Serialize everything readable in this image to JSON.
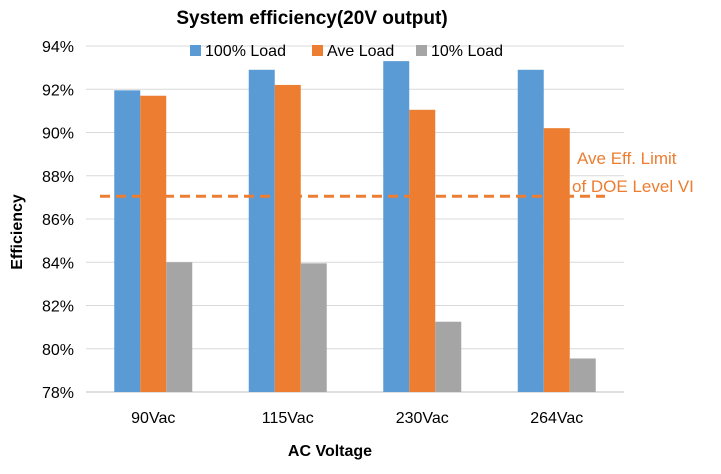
{
  "chart_data": {
    "type": "bar",
    "title": "System efficiency(20V output)",
    "xlabel": "AC Voltage",
    "ylabel": "Efficiency",
    "categories": [
      "90Vac",
      "115Vac",
      "230Vac",
      "264Vac"
    ],
    "ylim": [
      78,
      94
    ],
    "yticks": [
      78,
      80,
      82,
      84,
      86,
      88,
      90,
      92,
      94
    ],
    "ytick_labels": [
      "78%",
      "80%",
      "82%",
      "84%",
      "86%",
      "88%",
      "90%",
      "92%",
      "94%"
    ],
    "grid": true,
    "legend_position": "top",
    "series": [
      {
        "name": "100% Load",
        "color": "#5b9bd5",
        "values": [
          91.95,
          92.9,
          93.3,
          92.9
        ]
      },
      {
        "name": "Ave Load",
        "color": "#ed7d31",
        "values": [
          91.7,
          92.2,
          91.05,
          90.2
        ]
      },
      {
        "name": "10% Load",
        "color": "#a5a5a5",
        "values": [
          84.0,
          83.95,
          81.25,
          79.55
        ]
      }
    ],
    "reference_line": {
      "value": 87.05,
      "color": "#ed7d31",
      "style": "dashed",
      "label_line1": "Ave Eff. Limit",
      "label_line2": "of DOE Level VI"
    }
  }
}
